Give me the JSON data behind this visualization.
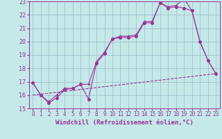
{
  "xlabel": "Windchill (Refroidissement éolien,°C)",
  "xlim": [
    -0.5,
    23.5
  ],
  "ylim": [
    15,
    23
  ],
  "yticks": [
    15,
    16,
    17,
    18,
    19,
    20,
    21,
    22,
    23
  ],
  "xticks": [
    0,
    1,
    2,
    3,
    4,
    5,
    6,
    7,
    8,
    9,
    10,
    11,
    12,
    13,
    14,
    15,
    16,
    17,
    18,
    19,
    20,
    21,
    22,
    23
  ],
  "background_color": "#c5e8e8",
  "grid_color": "#99bbcc",
  "line_color": "#993399",
  "line1_y": [
    16.9,
    16.0,
    15.4,
    15.8,
    16.4,
    16.5,
    16.8,
    15.7,
    18.4,
    19.1,
    20.2,
    20.3,
    20.3,
    20.4,
    21.4,
    21.4,
    22.9,
    22.5,
    22.6,
    22.5,
    22.3,
    20.0,
    18.6,
    17.6
  ],
  "line2_y": [
    16.9,
    16.0,
    15.5,
    16.0,
    16.5,
    16.5,
    16.8,
    16.8,
    18.5,
    19.2,
    20.2,
    20.4,
    20.4,
    20.5,
    21.5,
    21.5,
    22.9,
    22.6,
    22.7,
    23.2,
    22.3,
    20.0,
    18.6,
    17.6
  ],
  "dashed_y_start": 16.0,
  "dashed_y_end": 17.6,
  "font_size": 6,
  "marker_size": 2.5,
  "lw": 0.8
}
